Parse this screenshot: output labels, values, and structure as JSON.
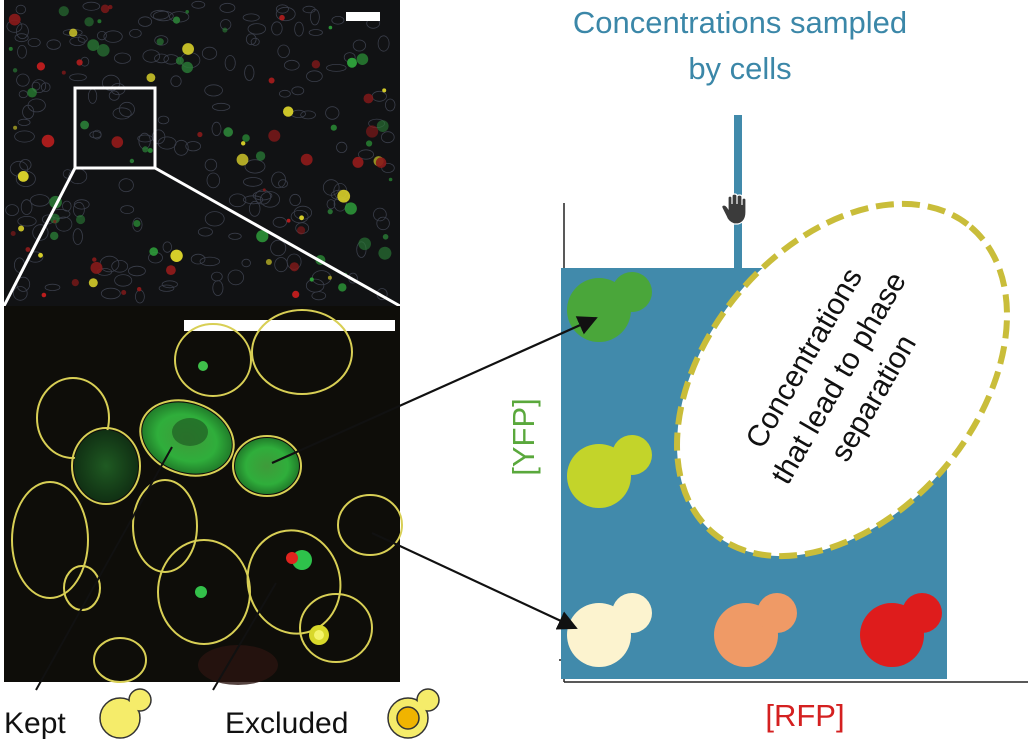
{
  "header": {
    "title_line1": "Concentrations sampled",
    "title_line2": "by cells"
  },
  "plot": {
    "y_label": "[YFP]",
    "x_label": "[RFP]",
    "region_label_line1": "Concentrations",
    "region_label_line2": "that lead to phase",
    "region_label_line3": "separation"
  },
  "legend": {
    "kept_label": "Kept",
    "excluded_label": "Excluded"
  },
  "colors": {
    "title_blue": "#3b87a8",
    "plot_blue": "#418aab",
    "yfp_green": "#5aa83c",
    "rfp_red": "#d42020",
    "dashed_outline": "#c9bd3a",
    "cell_outline": "#d8cf55"
  },
  "icons": {
    "pointer": "hand-pointer-icon"
  }
}
